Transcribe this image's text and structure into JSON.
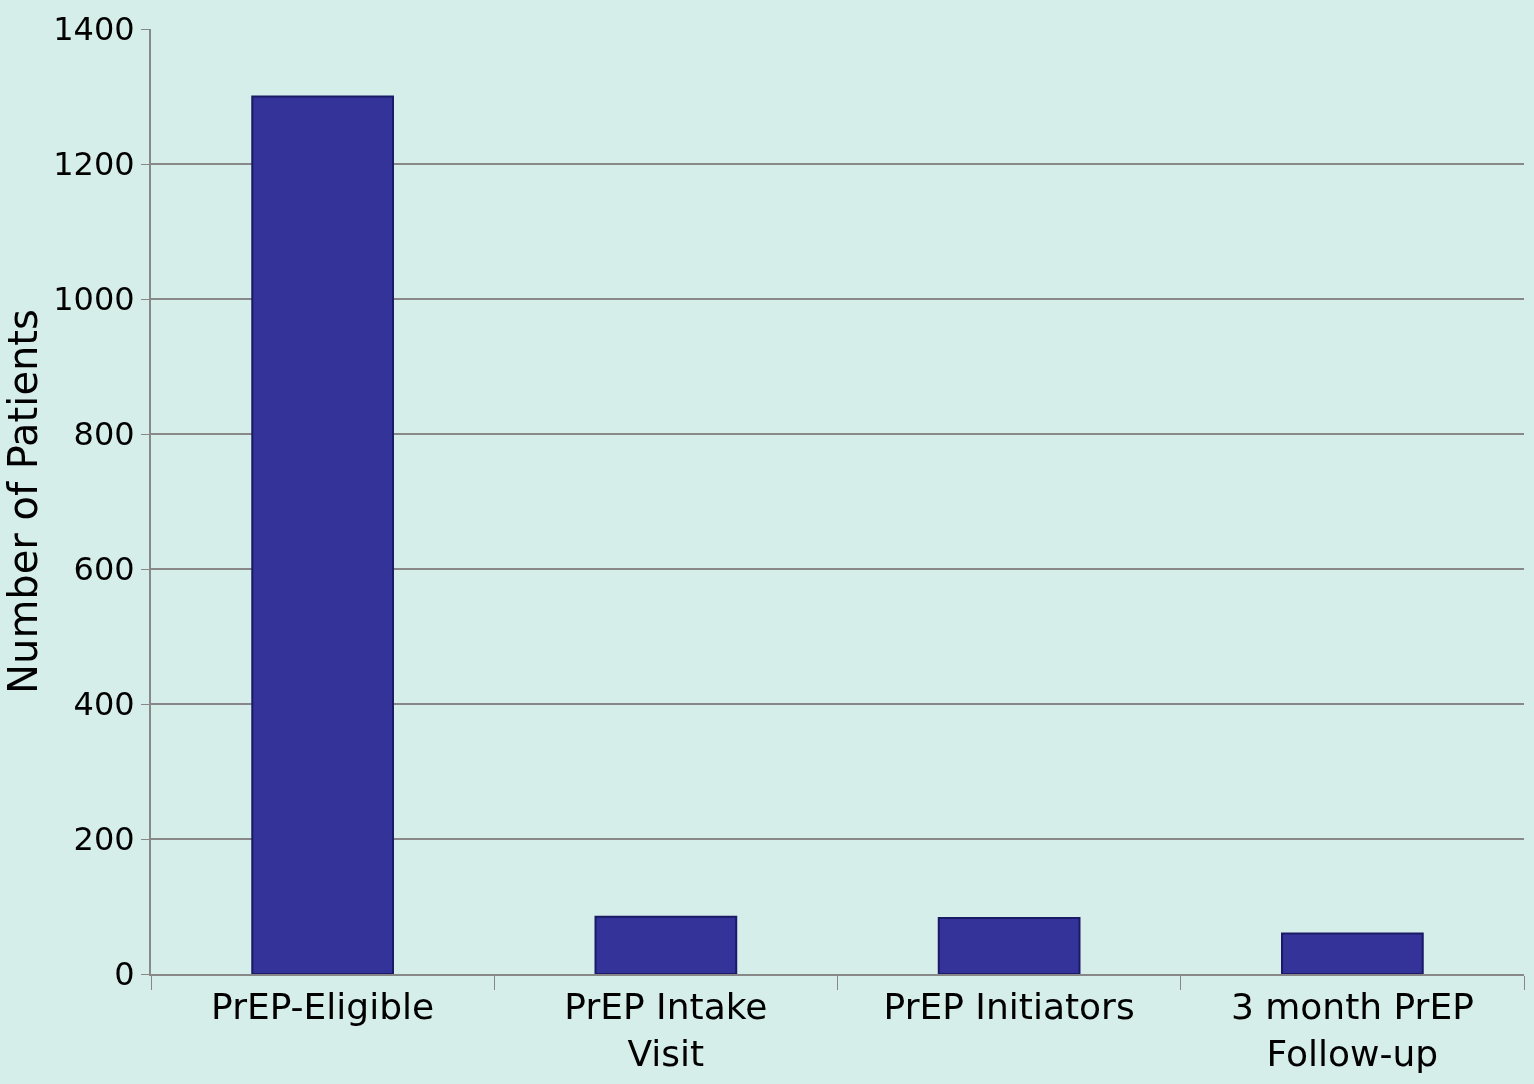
{
  "chart_data": {
    "type": "bar",
    "ylabel": "Number of Patients",
    "categories": [
      "PrEP-Eligible",
      "PrEP Intake Visit",
      "PrEP Initiators",
      "3 month PrEP Follow-up"
    ],
    "values": [
      1300,
      85,
      83,
      60
    ],
    "color": "#333399",
    "ylim": [
      0,
      1400
    ],
    "yticks": [
      0,
      200,
      400,
      600,
      800,
      1000,
      1200,
      1400
    ],
    "grid": "y"
  }
}
